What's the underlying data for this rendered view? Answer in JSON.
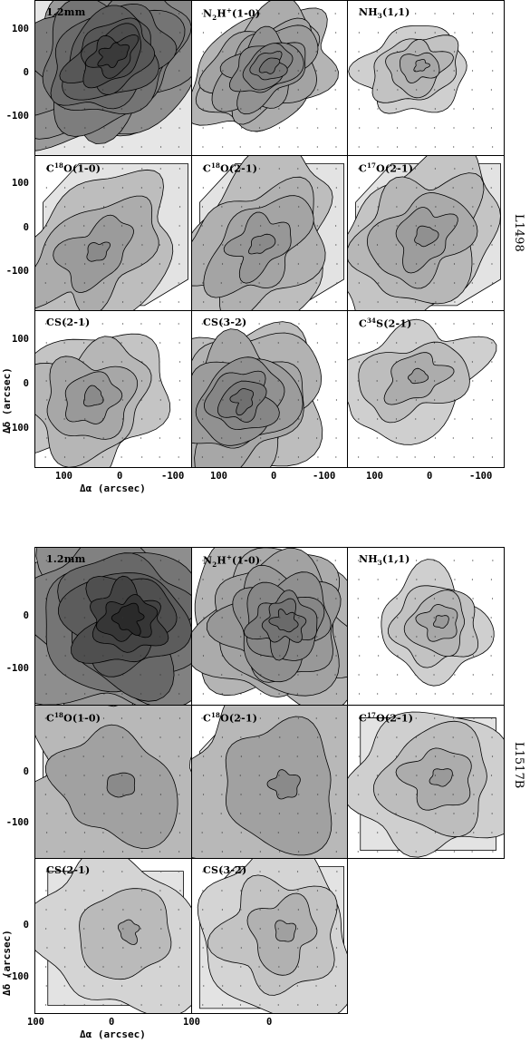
{
  "figure_top": {
    "source": "L1498",
    "panels": [
      {
        "line": "1.2mm",
        "html": "1.2mm",
        "shade": "#9a9a9a",
        "dark": "#3a3a3a",
        "levels": 11
      },
      {
        "line": "N2H+(1-0)",
        "html": "N<sub>2</sub>H<sup>+</sup>(1-0)",
        "shade": "#b4b4b4",
        "dark": "#707070",
        "levels": 9
      },
      {
        "line": "NH3(1,1)",
        "html": "NH<sub>3</sub>(1,1)",
        "shade": "#cfcfcf",
        "dark": "#9a9a9a",
        "levels": 5
      },
      {
        "line": "C18O(1-0)",
        "html": "C<sup>18</sup>O(1-0)",
        "shade": "#bdbdbd",
        "dark": "#8a8a8a",
        "levels": 4
      },
      {
        "line": "C18O(2-1)",
        "html": "C<sup>18</sup>O(2-1)",
        "shade": "#bdbdbd",
        "dark": "#8a8a8a",
        "levels": 5
      },
      {
        "line": "C17O(2-1)",
        "html": "C<sup>17</sup>O(2-1)",
        "shade": "#c4c4c4",
        "dark": "#909090",
        "levels": 5
      },
      {
        "line": "CS(2-1)",
        "html": "CS(2-1)",
        "shade": "#c4c4c4",
        "dark": "#8a8a8a",
        "levels": 5
      },
      {
        "line": "CS(3-2)",
        "html": "CS(3-2)",
        "shade": "#bdbdbd",
        "dark": "#707070",
        "levels": 8
      },
      {
        "line": "C34S(2-1)",
        "html": "C<sup>34</sup>S(2-1)",
        "shade": "#cfcfcf",
        "dark": "#9a9a9a",
        "levels": 4
      }
    ],
    "yticks": [
      "100",
      "0",
      "-100"
    ],
    "xticks": [
      "100",
      "0",
      "-100"
    ],
    "xlabel": "Δα (arcsec)",
    "ylabel": "Δδ (arcsec)"
  },
  "figure_bottom": {
    "source": "L1517B",
    "panels": [
      {
        "line": "1.2mm",
        "html": "1.2mm",
        "shade": "#9a9a9a",
        "dark": "#2a2a2a",
        "levels": 10
      },
      {
        "line": "N2H+(1-0)",
        "html": "N<sub>2</sub>H<sup>+</sup>(1-0)",
        "shade": "#b4b4b4",
        "dark": "#6a6a6a",
        "levels": 9
      },
      {
        "line": "NH3(1,1)",
        "html": "NH<sub>3</sub>(1,1)",
        "shade": "#cfcfcf",
        "dark": "#9a9a9a",
        "levels": 5
      },
      {
        "line": "C18O(1-0)",
        "html": "C<sup>18</sup>O(1-0)",
        "shade": "#b8b8b8",
        "dark": "#8a8a8a",
        "levels": 3
      },
      {
        "line": "C18O(2-1)",
        "html": "C<sup>18</sup>O(2-1)",
        "shade": "#b8b8b8",
        "dark": "#8a8a8a",
        "levels": 3
      },
      {
        "line": "C17O(2-1)",
        "html": "C<sup>17</sup>O(2-1)",
        "shade": "#cfcfcf",
        "dark": "#9a9a9a",
        "levels": 4
      },
      {
        "line": "CS(2-1)",
        "html": "CS(2-1)",
        "shade": "#d4d4d4",
        "dark": "#a0a0a0",
        "levels": 3
      },
      {
        "line": "CS(3-2)",
        "html": "CS(3-2)",
        "shade": "#d4d4d4",
        "dark": "#a0a0a0",
        "levels": 4
      }
    ],
    "yticks": [
      "0",
      "-100"
    ],
    "xticks": [
      "100",
      "0",
      "100"
    ],
    "xlabel": "Δα (arcsec)",
    "ylabel": "Δδ (arcsec)"
  }
}
